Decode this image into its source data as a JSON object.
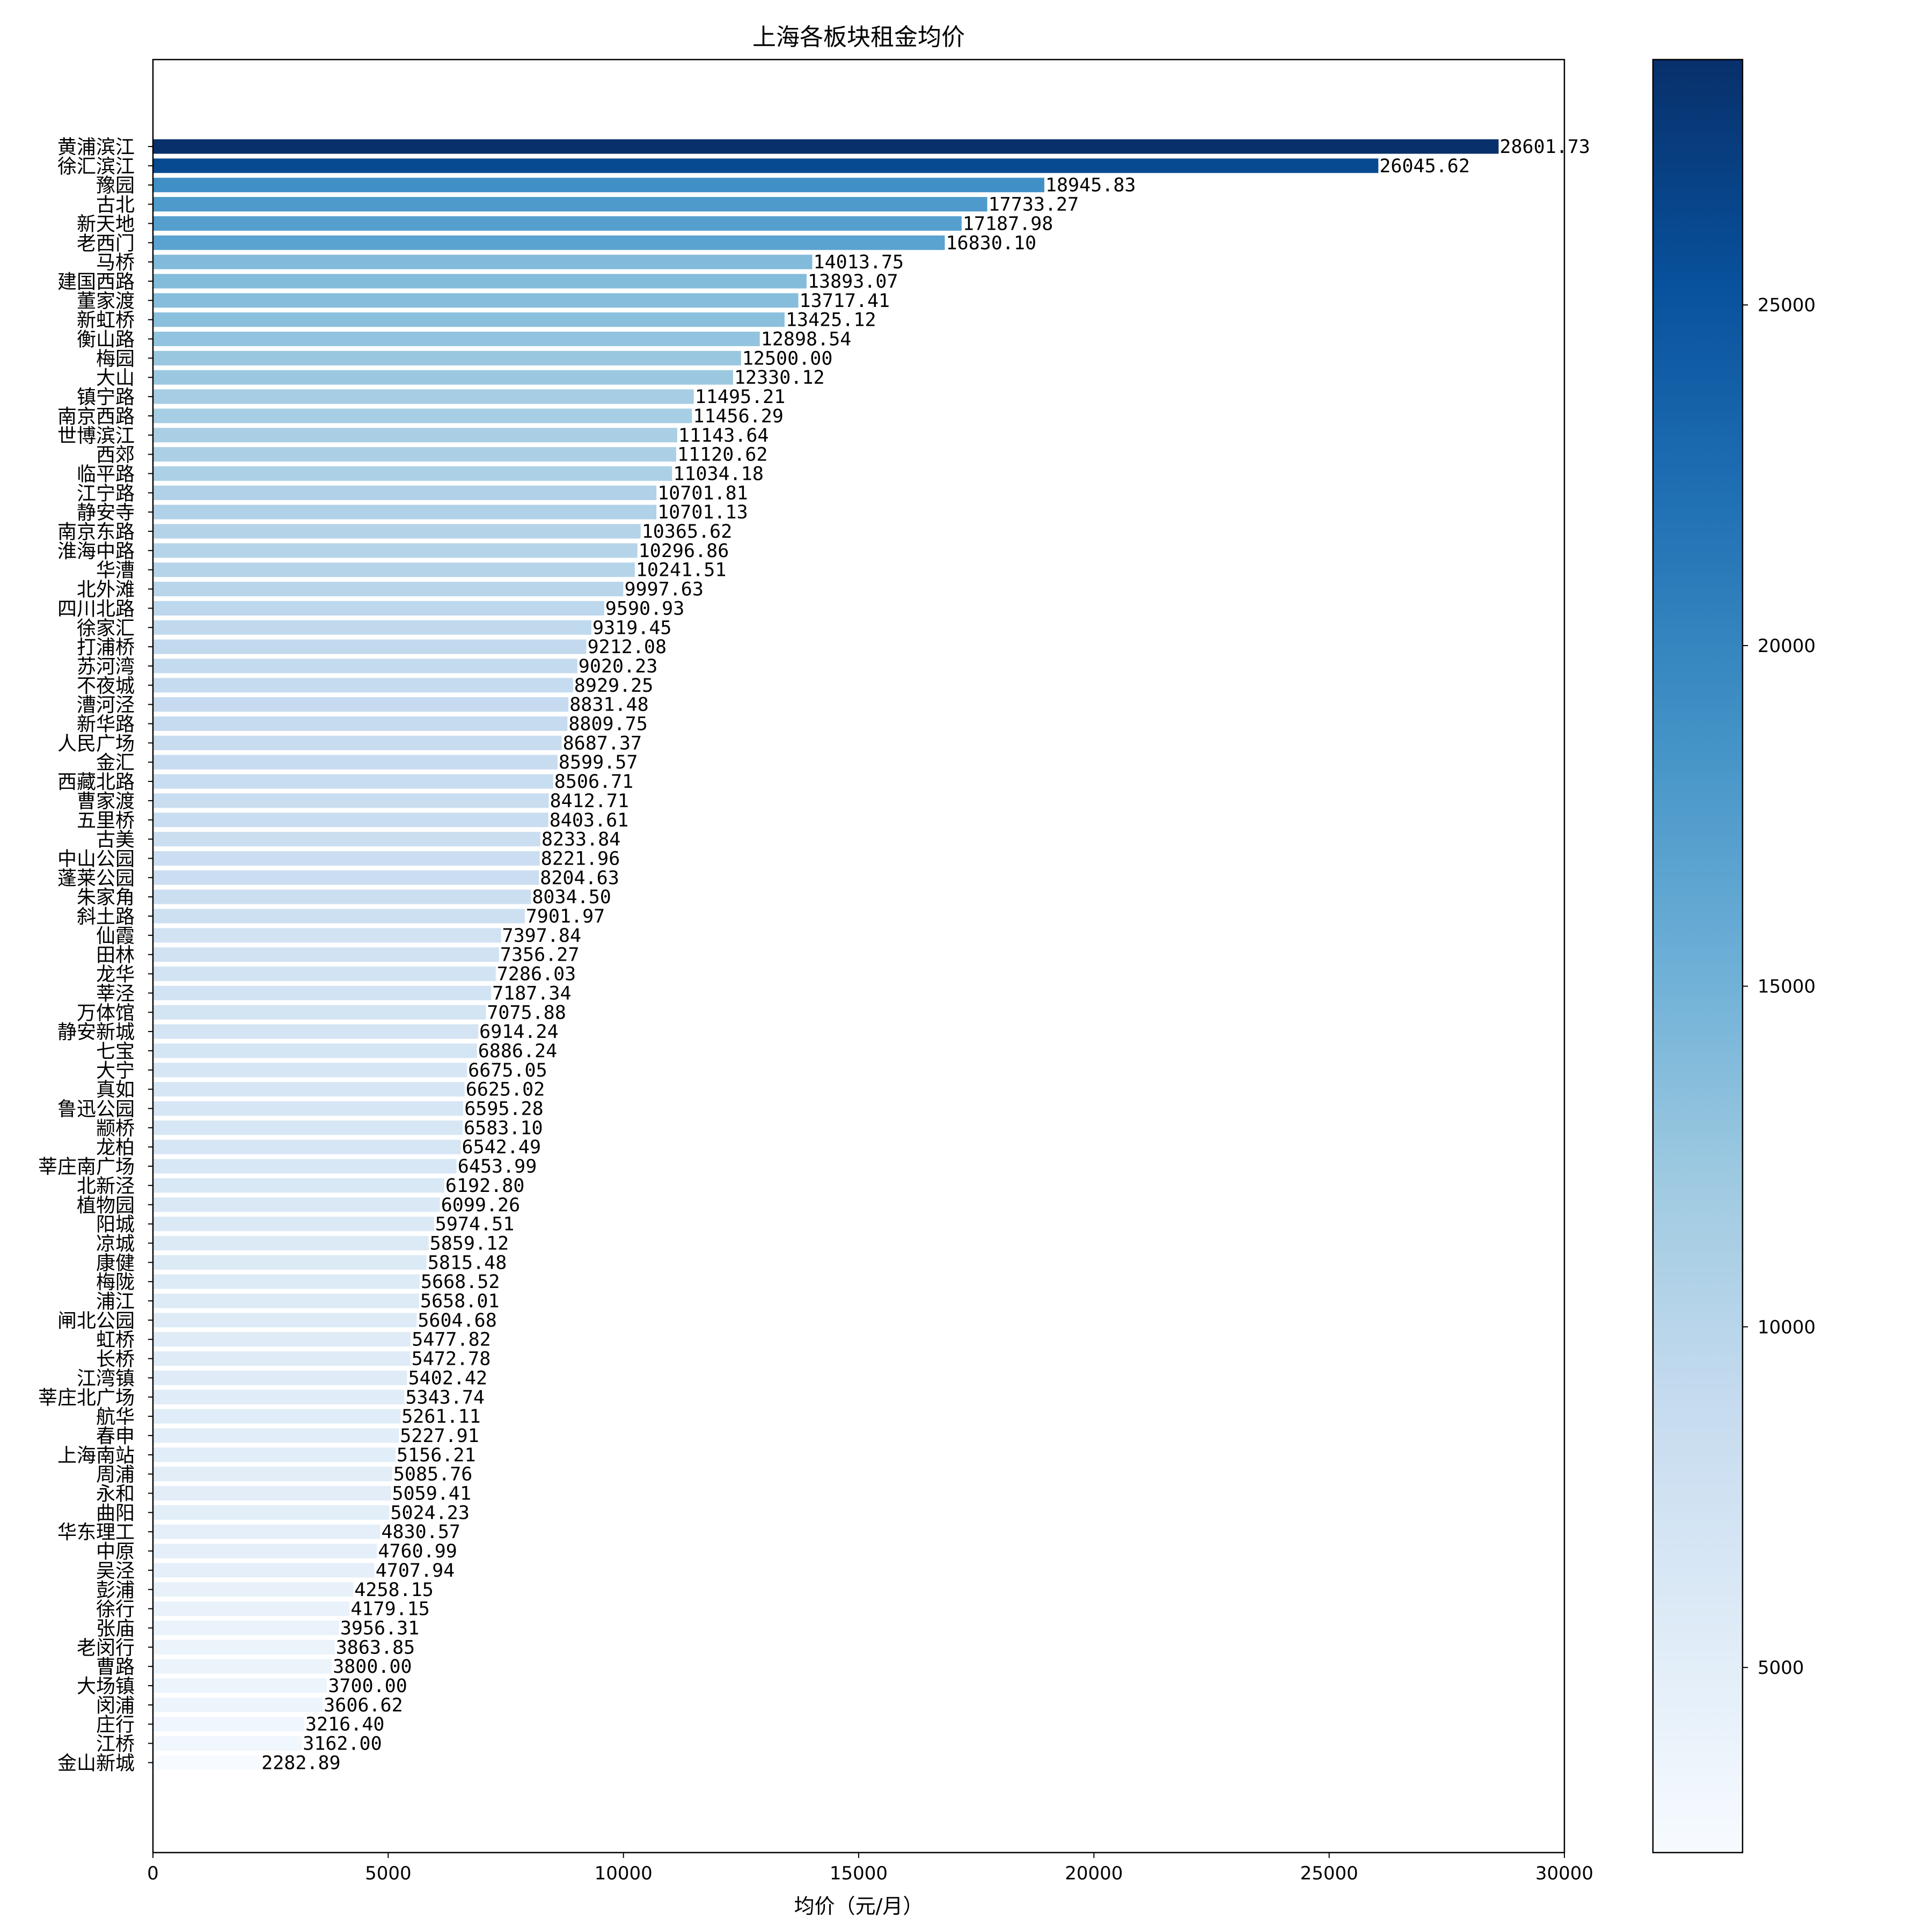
{
  "chart_data": {
    "type": "bar",
    "orientation": "horizontal",
    "title": "上海各板块租金均价",
    "xlabel": "均价（元/月）",
    "ylabel": "",
    "xlim": [
      0,
      30000
    ],
    "xticks": [
      0,
      5000,
      10000,
      15000,
      20000,
      25000,
      30000
    ],
    "colorbar": {
      "colormap": "Blues",
      "range": [
        2282.89,
        28601.73
      ],
      "ticks": [
        5000,
        10000,
        15000,
        20000,
        25000
      ]
    },
    "categories": [
      "黄浦滨江",
      "徐汇滨江",
      "豫园",
      "古北",
      "新天地",
      "老西门",
      "马桥",
      "建国西路",
      "董家渡",
      "新虹桥",
      "衡山路",
      "梅园",
      "大山",
      "镇宁路",
      "南京西路",
      "世博滨江",
      "西郊",
      "临平路",
      "江宁路",
      "静安寺",
      "南京东路",
      "淮海中路",
      "华漕",
      "北外滩",
      "四川北路",
      "徐家汇",
      "打浦桥",
      "苏河湾",
      "不夜城",
      "漕河泾",
      "新华路",
      "人民广场",
      "金汇",
      "西藏北路",
      "曹家渡",
      "五里桥",
      "古美",
      "中山公园",
      "蓬莱公园",
      "朱家角",
      "斜土路",
      "仙霞",
      "田林",
      "龙华",
      "莘泾",
      "万体馆",
      "静安新城",
      "七宝",
      "大宁",
      "真如",
      "鲁迅公园",
      "颛桥",
      "龙柏",
      "莘庄南广场",
      "北新泾",
      "植物园",
      "阳城",
      "凉城",
      "康健",
      "梅陇",
      "浦江",
      "闸北公园",
      "虹桥",
      "长桥",
      "江湾镇",
      "莘庄北广场",
      "航华",
      "春申",
      "上海南站",
      "周浦",
      "永和",
      "曲阳",
      "华东理工",
      "中原",
      "吴泾",
      "彭浦",
      "徐行",
      "张庙",
      "老闵行",
      "曹路",
      "大场镇",
      "闵浦",
      "庄行",
      "江桥",
      "金山新城"
    ],
    "values": [
      28601.73,
      26045.62,
      18945.83,
      17733.27,
      17187.98,
      16830.1,
      14013.75,
      13893.07,
      13717.41,
      13425.12,
      12898.54,
      12500.0,
      12330.12,
      11495.21,
      11456.29,
      11143.64,
      11120.62,
      11034.18,
      10701.81,
      10701.13,
      10365.62,
      10296.86,
      10241.51,
      9997.63,
      9590.93,
      9319.45,
      9212.08,
      9020.23,
      8929.25,
      8831.48,
      8809.75,
      8687.37,
      8599.57,
      8506.71,
      8412.71,
      8403.61,
      8233.84,
      8221.96,
      8204.63,
      8034.5,
      7901.97,
      7397.84,
      7356.27,
      7286.03,
      7187.34,
      7075.88,
      6914.24,
      6886.24,
      6675.05,
      6625.02,
      6595.28,
      6583.1,
      6542.49,
      6453.99,
      6192.8,
      6099.26,
      5974.51,
      5859.12,
      5815.48,
      5668.52,
      5658.01,
      5604.68,
      5477.82,
      5472.78,
      5402.42,
      5343.74,
      5261.11,
      5227.91,
      5156.21,
      5085.76,
      5059.41,
      5024.23,
      4830.57,
      4760.99,
      4707.94,
      4258.15,
      4179.15,
      3956.31,
      3863.85,
      3800.0,
      3700.0,
      3606.62,
      3216.4,
      3162.0,
      2282.89
    ],
    "value_labels": [
      "28601.73",
      "26045.62",
      "18945.83",
      "17733.27",
      "17187.98",
      "16830.10",
      "14013.75",
      "13893.07",
      "13717.41",
      "13425.12",
      "12898.54",
      "12500.00",
      "12330.12",
      "11495.21",
      "11456.29",
      "11143.64",
      "11120.62",
      "11034.18",
      "10701.81",
      "10701.13",
      "10365.62",
      "10296.86",
      "10241.51",
      "9997.63",
      "9590.93",
      "9319.45",
      "9212.08",
      "9020.23",
      "8929.25",
      "8831.48",
      "8809.75",
      "8687.37",
      "8599.57",
      "8506.71",
      "8412.71",
      "8403.61",
      "8233.84",
      "8221.96",
      "8204.63",
      "8034.50",
      "7901.97",
      "7397.84",
      "7356.27",
      "7286.03",
      "7187.34",
      "7075.88",
      "6914.24",
      "6886.24",
      "6675.05",
      "6625.02",
      "6595.28",
      "6583.10",
      "6542.49",
      "6453.99",
      "6192.80",
      "6099.26",
      "5974.51",
      "5859.12",
      "5815.48",
      "5668.52",
      "5658.01",
      "5604.68",
      "5477.82",
      "5472.78",
      "5402.42",
      "5343.74",
      "5261.11",
      "5227.91",
      "5156.21",
      "5085.76",
      "5059.41",
      "5024.23",
      "4830.57",
      "4760.99",
      "4707.94",
      "4258.15",
      "4179.15",
      "3956.31",
      "3863.85",
      "3800.00",
      "3700.00",
      "3606.62",
      "3216.40",
      "3162.00",
      "2282.89"
    ],
    "grid": false,
    "legend": "none"
  }
}
